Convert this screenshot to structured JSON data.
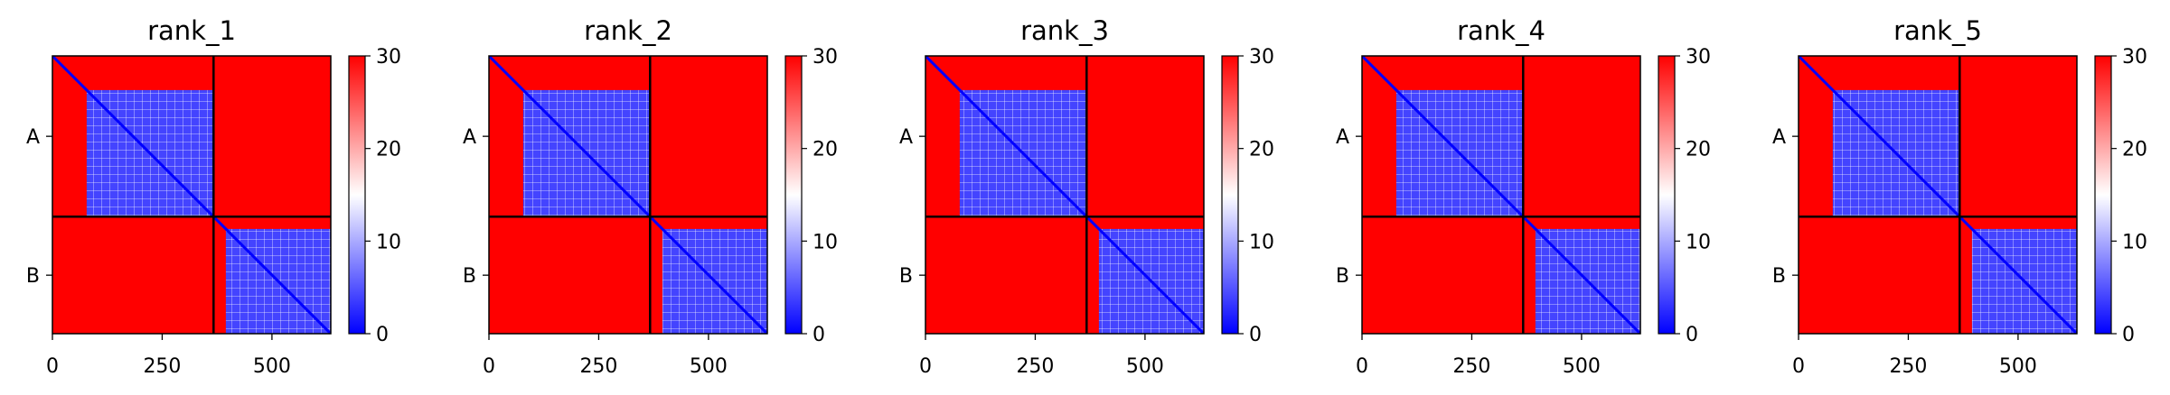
{
  "chart_data": [
    {
      "type": "heatmap",
      "title": "rank_1",
      "x": {
        "lim": [
          0,
          634
        ],
        "ticks": [
          0,
          250,
          500
        ],
        "tick_labels": [
          "0",
          "250",
          "500"
        ]
      },
      "y": {
        "chain_labels": [
          "A",
          "B"
        ]
      },
      "chains": [
        {
          "name": "A",
          "start": 0,
          "end": 367
        },
        {
          "name": "B",
          "start": 367,
          "end": 634
        }
      ],
      "domains": [
        {
          "start": 78,
          "end": 367
        },
        {
          "start": 395,
          "end": 634
        }
      ],
      "colorbar": {
        "min": 0,
        "max": 30,
        "ticks": [
          0,
          10,
          20,
          30
        ],
        "tick_labels": [
          "0",
          "10",
          "20",
          "30"
        ],
        "colors": [
          "#0000ff",
          "#ffffff",
          "#ff0000"
        ]
      },
      "values": {
        "cross_chain": 30,
        "intra_domain": 4,
        "outside_domain": 30,
        "diagonal": 0
      }
    },
    {
      "type": "heatmap",
      "title": "rank_2",
      "x": {
        "lim": [
          0,
          634
        ],
        "ticks": [
          0,
          250,
          500
        ],
        "tick_labels": [
          "0",
          "250",
          "500"
        ]
      },
      "y": {
        "chain_labels": [
          "A",
          "B"
        ]
      },
      "chains": [
        {
          "name": "A",
          "start": 0,
          "end": 367
        },
        {
          "name": "B",
          "start": 367,
          "end": 634
        }
      ],
      "domains": [
        {
          "start": 78,
          "end": 367
        },
        {
          "start": 395,
          "end": 634
        }
      ],
      "colorbar": {
        "min": 0,
        "max": 30,
        "ticks": [
          0,
          10,
          20,
          30
        ],
        "tick_labels": [
          "0",
          "10",
          "20",
          "30"
        ],
        "colors": [
          "#0000ff",
          "#ffffff",
          "#ff0000"
        ]
      },
      "values": {
        "cross_chain": 30,
        "intra_domain": 4,
        "outside_domain": 30,
        "diagonal": 0
      }
    },
    {
      "type": "heatmap",
      "title": "rank_3",
      "x": {
        "lim": [
          0,
          634
        ],
        "ticks": [
          0,
          250,
          500
        ],
        "tick_labels": [
          "0",
          "250",
          "500"
        ]
      },
      "y": {
        "chain_labels": [
          "A",
          "B"
        ]
      },
      "chains": [
        {
          "name": "A",
          "start": 0,
          "end": 367
        },
        {
          "name": "B",
          "start": 367,
          "end": 634
        }
      ],
      "domains": [
        {
          "start": 78,
          "end": 367
        },
        {
          "start": 395,
          "end": 634
        }
      ],
      "colorbar": {
        "min": 0,
        "max": 30,
        "ticks": [
          0,
          10,
          20,
          30
        ],
        "tick_labels": [
          "0",
          "10",
          "20",
          "30"
        ],
        "colors": [
          "#0000ff",
          "#ffffff",
          "#ff0000"
        ]
      },
      "values": {
        "cross_chain": 30,
        "intra_domain": 4,
        "outside_domain": 30,
        "diagonal": 0
      }
    },
    {
      "type": "heatmap",
      "title": "rank_4",
      "x": {
        "lim": [
          0,
          634
        ],
        "ticks": [
          0,
          250,
          500
        ],
        "tick_labels": [
          "0",
          "250",
          "500"
        ]
      },
      "y": {
        "chain_labels": [
          "A",
          "B"
        ]
      },
      "chains": [
        {
          "name": "A",
          "start": 0,
          "end": 367
        },
        {
          "name": "B",
          "start": 367,
          "end": 634
        }
      ],
      "domains": [
        {
          "start": 78,
          "end": 367
        },
        {
          "start": 395,
          "end": 634
        }
      ],
      "colorbar": {
        "min": 0,
        "max": 30,
        "ticks": [
          0,
          10,
          20,
          30
        ],
        "tick_labels": [
          "0",
          "10",
          "20",
          "30"
        ],
        "colors": [
          "#0000ff",
          "#ffffff",
          "#ff0000"
        ]
      },
      "values": {
        "cross_chain": 30,
        "intra_domain": 4,
        "outside_domain": 30,
        "diagonal": 0
      }
    },
    {
      "type": "heatmap",
      "title": "rank_5",
      "x": {
        "lim": [
          0,
          634
        ],
        "ticks": [
          0,
          250,
          500
        ],
        "tick_labels": [
          "0",
          "250",
          "500"
        ]
      },
      "y": {
        "chain_labels": [
          "A",
          "B"
        ]
      },
      "chains": [
        {
          "name": "A",
          "start": 0,
          "end": 367
        },
        {
          "name": "B",
          "start": 367,
          "end": 634
        }
      ],
      "domains": [
        {
          "start": 78,
          "end": 367
        },
        {
          "start": 395,
          "end": 634
        }
      ],
      "colorbar": {
        "min": 0,
        "max": 30,
        "ticks": [
          0,
          10,
          20,
          30
        ],
        "tick_labels": [
          "0",
          "10",
          "20",
          "30"
        ],
        "colors": [
          "#0000ff",
          "#ffffff",
          "#ff0000"
        ]
      },
      "values": {
        "cross_chain": 30,
        "intra_domain": 4,
        "outside_domain": 30,
        "diagonal": 0
      }
    }
  ]
}
